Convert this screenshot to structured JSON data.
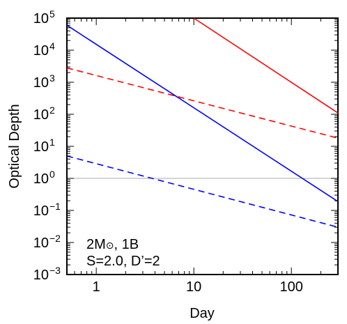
{
  "chart_data": {
    "type": "line",
    "title": "",
    "xlabel": "Day",
    "ylabel": "Optical Depth",
    "xscale": "log",
    "yscale": "log",
    "xlim": [
      0.5,
      300
    ],
    "ylim": [
      0.001,
      100000
    ],
    "x_ticks": [
      {
        "value": 1,
        "label": "1"
      },
      {
        "value": 10,
        "label": "10"
      },
      {
        "value": 100,
        "label": "100"
      }
    ],
    "y_ticks": [
      {
        "value": 0.001,
        "base": "10",
        "exp": "−3"
      },
      {
        "value": 0.01,
        "base": "10",
        "exp": "−2"
      },
      {
        "value": 0.1,
        "base": "10",
        "exp": "−1"
      },
      {
        "value": 1,
        "base": "10",
        "exp": "0"
      },
      {
        "value": 10,
        "base": "10",
        "exp": "1"
      },
      {
        "value": 100,
        "base": "10",
        "exp": "2"
      },
      {
        "value": 1000,
        "base": "10",
        "exp": "3"
      },
      {
        "value": 10000,
        "base": "10",
        "exp": "4"
      },
      {
        "value": 100000,
        "base": "10",
        "exp": "5"
      }
    ],
    "grid": false,
    "reference_line": {
      "y": 1,
      "color": "#aaaaaa"
    },
    "series": [
      {
        "color": "#ff0000",
        "dash": "solid",
        "x": [
          10,
          300
        ],
        "y": [
          100000,
          110
        ]
      },
      {
        "color": "#ff0000",
        "dash": "dashed",
        "x": [
          0.5,
          300
        ],
        "y": [
          2800,
          18
        ]
      },
      {
        "color": "#0000ff",
        "dash": "solid",
        "x": [
          0.5,
          300
        ],
        "y": [
          60000,
          0.19
        ]
      },
      {
        "color": "#0000ff",
        "dash": "dashed",
        "x": [
          0.5,
          300
        ],
        "y": [
          5,
          0.03
        ]
      }
    ],
    "annotations": [
      {
        "line1_prefix": "2M",
        "line1_symbol": "⊙",
        "line1_suffix": ", 1B"
      },
      {
        "text": "S=2.0, D’=2"
      }
    ]
  }
}
